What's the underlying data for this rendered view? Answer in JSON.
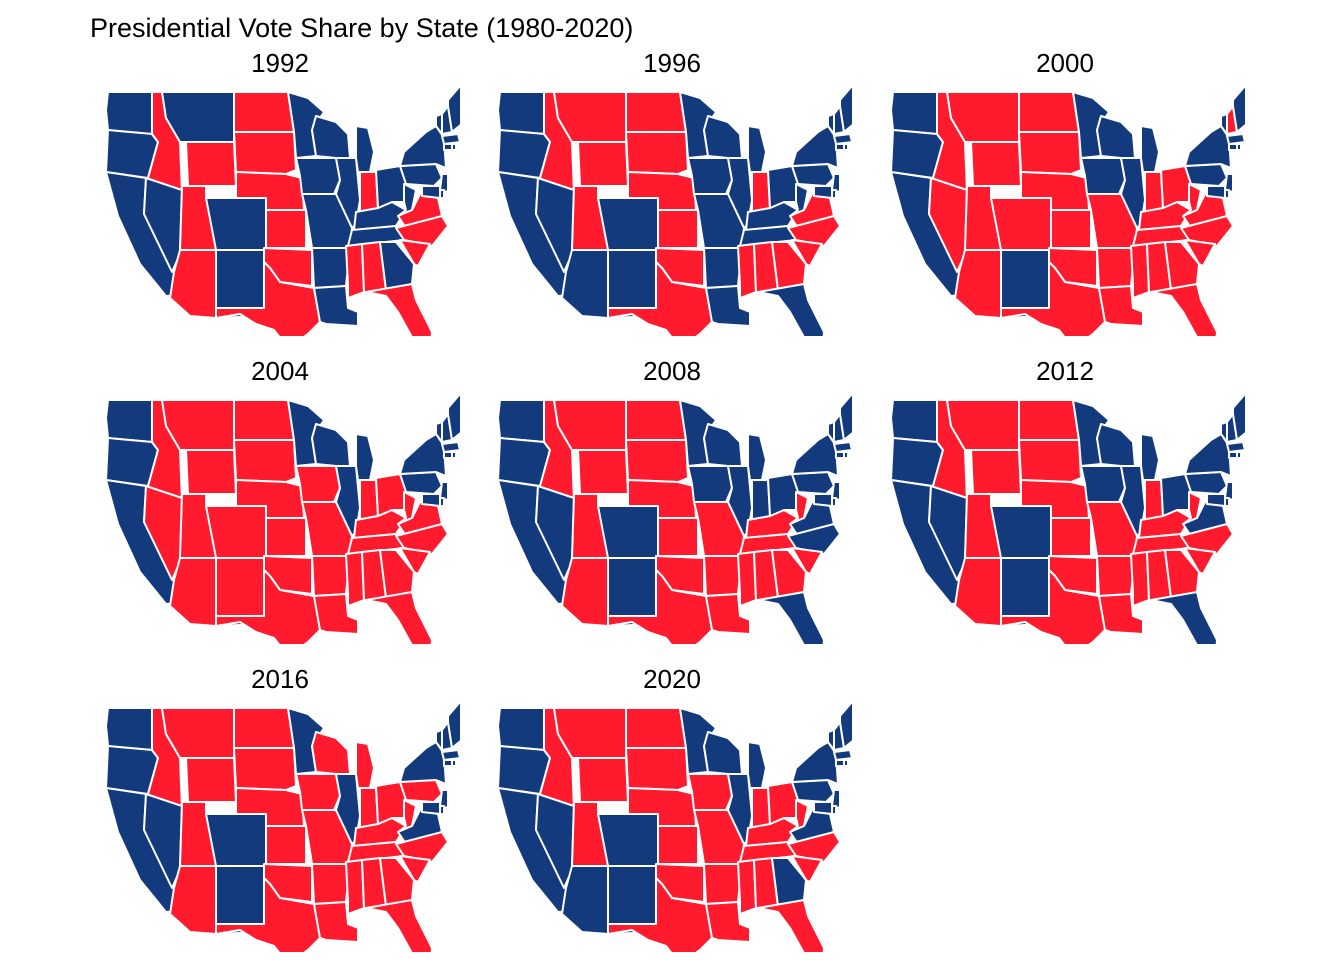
{
  "title": "Presidential Vote Share by State (1980-2020)",
  "colors": {
    "dem": "#133A7C",
    "rep": "#FF1A2E",
    "border": "#ffffff"
  },
  "states": [
    "WA",
    "OR",
    "CA",
    "ID",
    "NV",
    "MT",
    "WY",
    "UT",
    "AZ",
    "CO",
    "NM",
    "ND",
    "SD",
    "NE",
    "KS",
    "OK",
    "TX",
    "MN",
    "IA",
    "MO",
    "AR",
    "LA",
    "WI",
    "IL",
    "MI",
    "IN",
    "KY",
    "TN",
    "MS",
    "AL",
    "GA",
    "FL",
    "OH",
    "WV",
    "VA",
    "NC",
    "SC",
    "PA",
    "NY",
    "VT",
    "NH",
    "ME",
    "MA",
    "NJ",
    "MD",
    "DE",
    "CT",
    "RI"
  ],
  "panels": [
    {
      "year": "1992",
      "rep": [
        "ID",
        "UT",
        "WY",
        "ND",
        "SD",
        "NE",
        "KS",
        "OK",
        "TX",
        "IN",
        "MS",
        "AL",
        "FL",
        "VA",
        "NC",
        "SC",
        "AZ"
      ]
    },
    {
      "year": "1996",
      "rep": [
        "ID",
        "UT",
        "WY",
        "MT",
        "ND",
        "SD",
        "NE",
        "KS",
        "OK",
        "TX",
        "IN",
        "MS",
        "AL",
        "GA",
        "VA",
        "NC",
        "SC"
      ]
    },
    {
      "year": "2000",
      "rep": [
        "ID",
        "NV",
        "UT",
        "AZ",
        "CO",
        "WY",
        "MT",
        "ND",
        "SD",
        "NE",
        "KS",
        "OK",
        "TX",
        "MO",
        "AR",
        "LA",
        "IN",
        "OH",
        "KY",
        "TN",
        "MS",
        "AL",
        "GA",
        "FL",
        "WV",
        "VA",
        "NC",
        "SC",
        "NH"
      ]
    },
    {
      "year": "2004",
      "rep": [
        "ID",
        "NV",
        "UT",
        "AZ",
        "CO",
        "NM",
        "WY",
        "MT",
        "ND",
        "SD",
        "NE",
        "KS",
        "OK",
        "TX",
        "IA",
        "MO",
        "AR",
        "LA",
        "IN",
        "OH",
        "KY",
        "TN",
        "MS",
        "AL",
        "GA",
        "FL",
        "WV",
        "VA",
        "NC",
        "SC"
      ]
    },
    {
      "year": "2008",
      "rep": [
        "ID",
        "UT",
        "AZ",
        "WY",
        "MT",
        "ND",
        "SD",
        "NE",
        "KS",
        "OK",
        "TX",
        "MO",
        "AR",
        "LA",
        "KY",
        "TN",
        "MS",
        "AL",
        "GA",
        "WV",
        "SC"
      ]
    },
    {
      "year": "2012",
      "rep": [
        "ID",
        "UT",
        "AZ",
        "WY",
        "MT",
        "ND",
        "SD",
        "NE",
        "KS",
        "OK",
        "TX",
        "MO",
        "AR",
        "LA",
        "IN",
        "KY",
        "TN",
        "MS",
        "AL",
        "GA",
        "WV",
        "NC",
        "SC"
      ]
    },
    {
      "year": "2016",
      "rep": [
        "ID",
        "UT",
        "AZ",
        "WY",
        "MT",
        "ND",
        "SD",
        "NE",
        "KS",
        "OK",
        "TX",
        "IA",
        "MO",
        "AR",
        "LA",
        "WI",
        "MI",
        "IN",
        "OH",
        "KY",
        "TN",
        "MS",
        "AL",
        "GA",
        "FL",
        "WV",
        "NC",
        "SC",
        "PA"
      ]
    },
    {
      "year": "2020",
      "rep": [
        "ID",
        "UT",
        "WY",
        "MT",
        "ND",
        "SD",
        "NE",
        "KS",
        "OK",
        "TX",
        "IA",
        "MO",
        "AR",
        "LA",
        "IN",
        "OH",
        "KY",
        "TN",
        "MS",
        "AL",
        "FL",
        "WV",
        "NC",
        "SC"
      ]
    }
  ]
}
